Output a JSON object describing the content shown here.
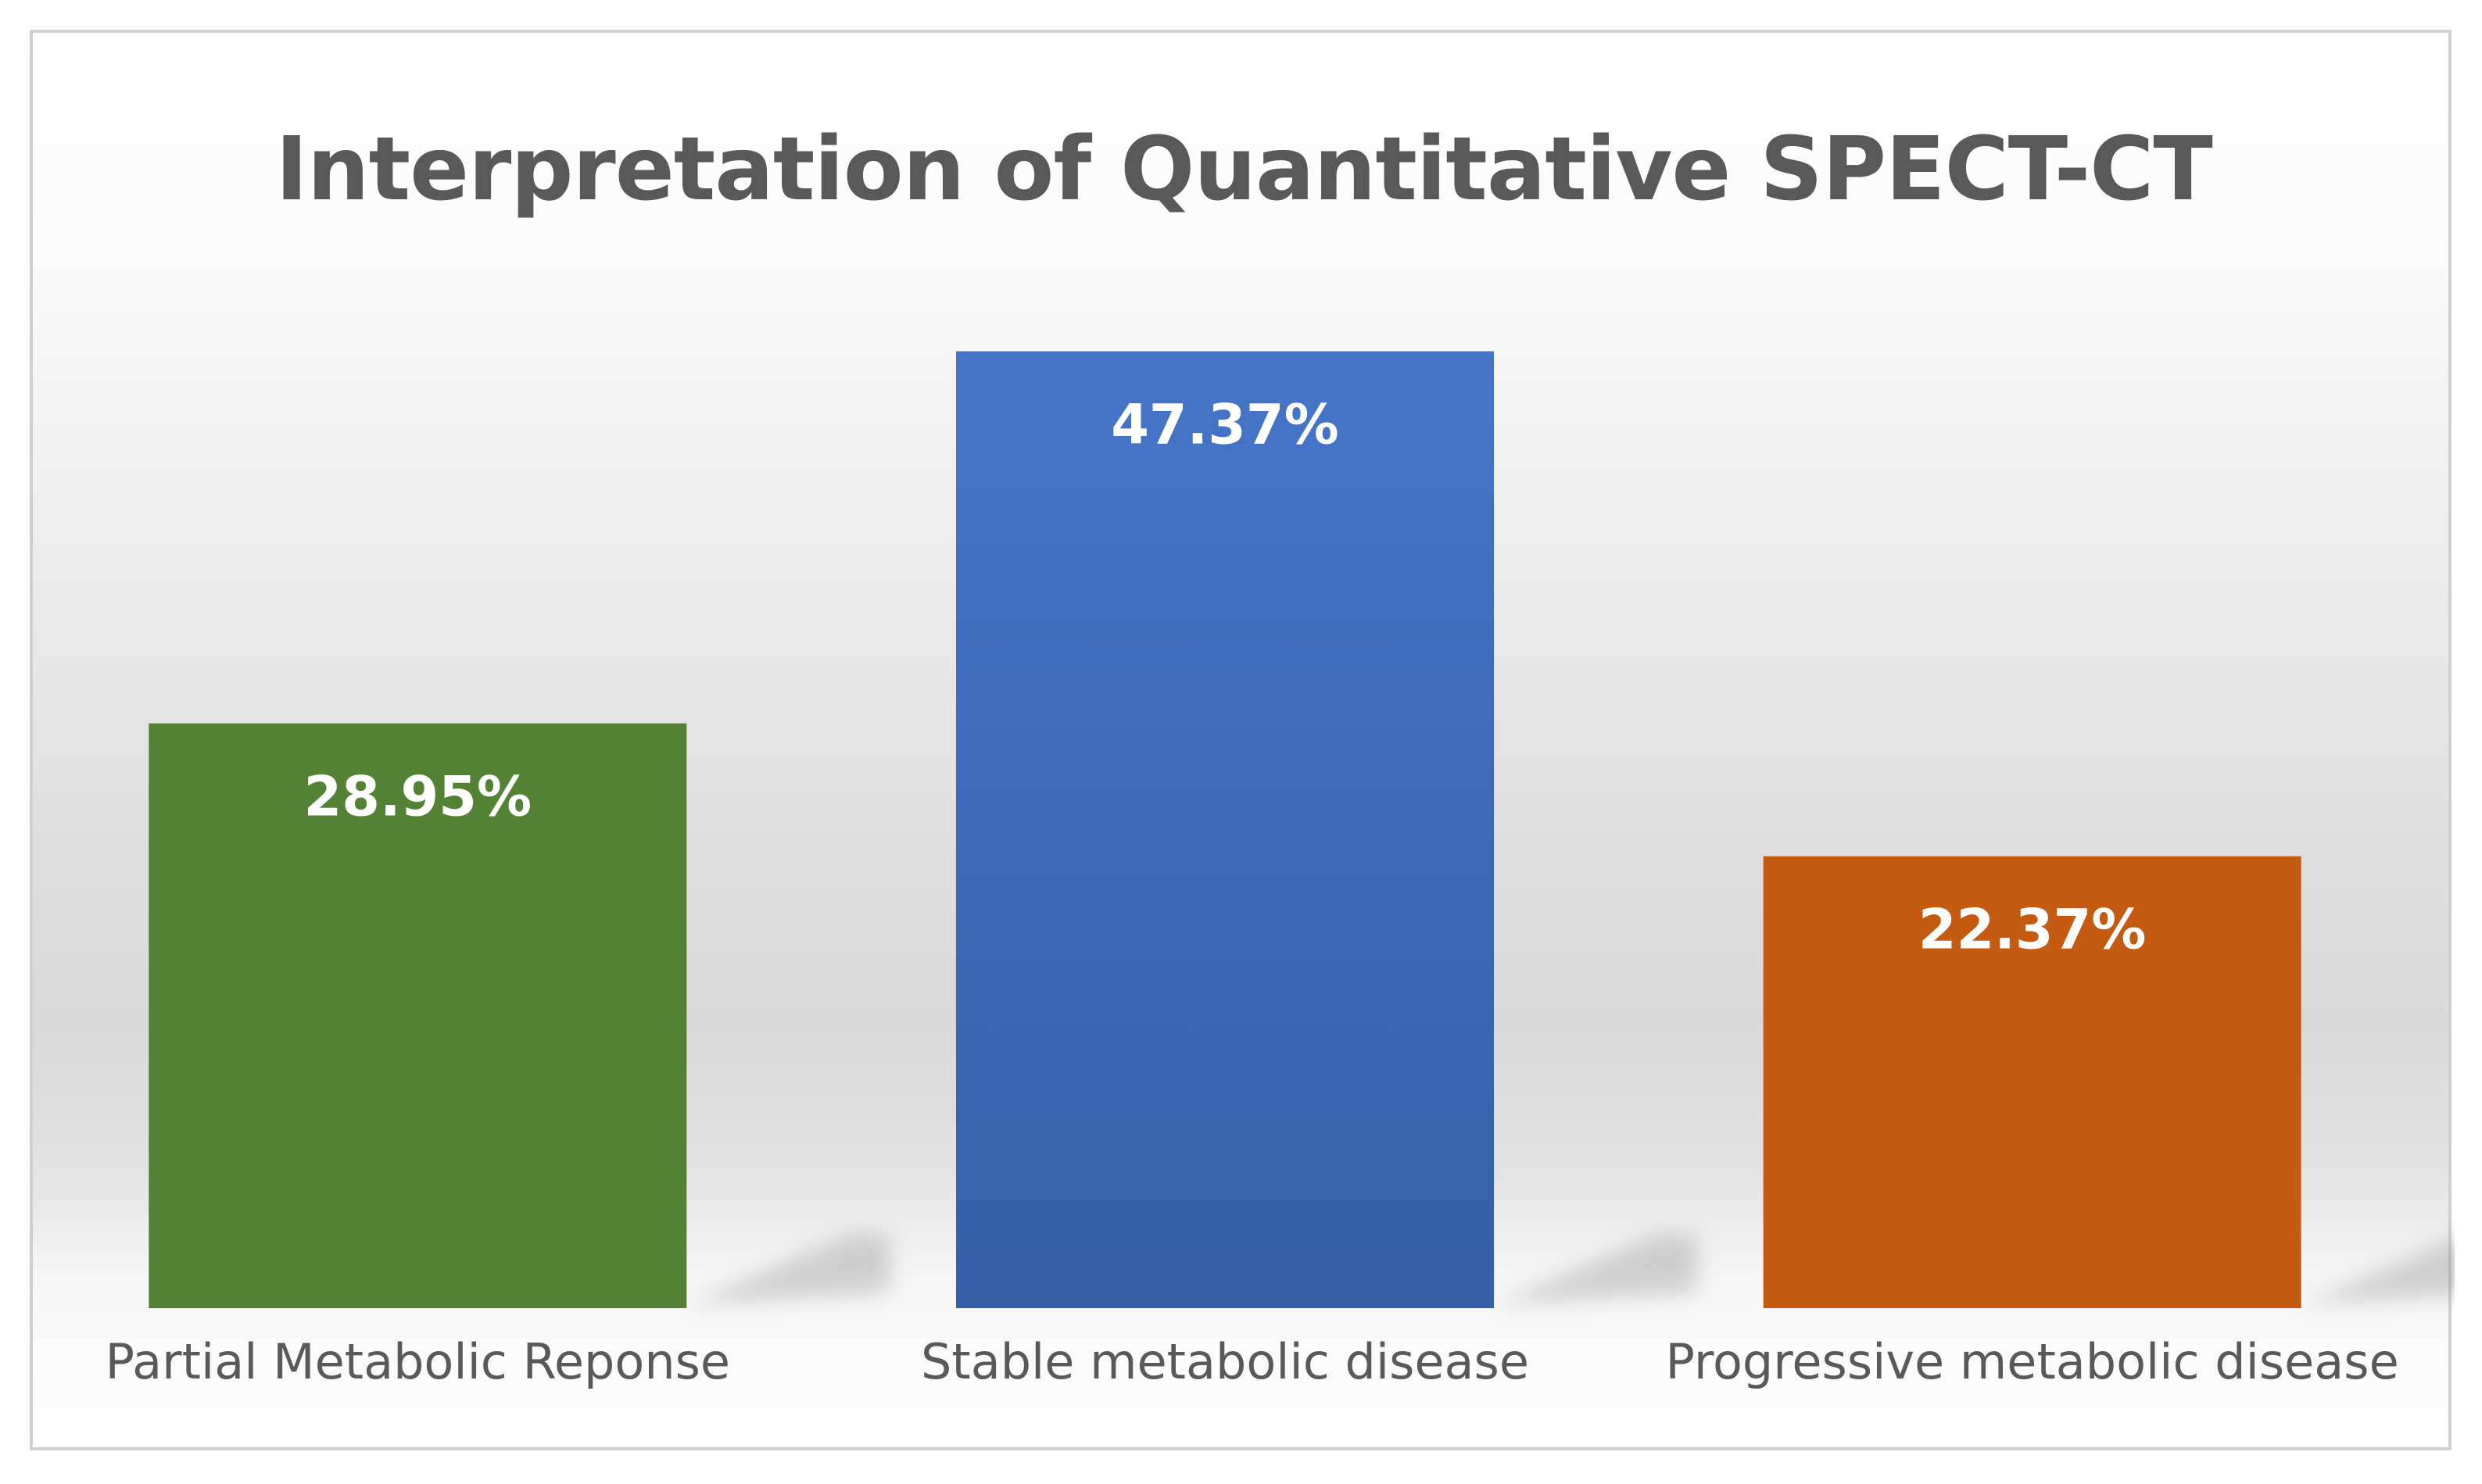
{
  "chart_data": {
    "type": "bar",
    "title": "Interpretation of Quantitative SPECT-CT",
    "categories": [
      "Partial Metabolic Reponse",
      "Stable metabolic disease",
      "Progressive metabolic disease"
    ],
    "values": [
      28.95,
      47.37,
      22.37
    ],
    "data_labels": [
      "28.95%",
      "47.37%",
      "22.37%"
    ],
    "colors": [
      "#548235",
      "#4472C4",
      "#C55A11"
    ],
    "xlabel": "",
    "ylabel": "",
    "ylim": [
      0,
      50
    ],
    "grid": false,
    "legend": "none"
  }
}
